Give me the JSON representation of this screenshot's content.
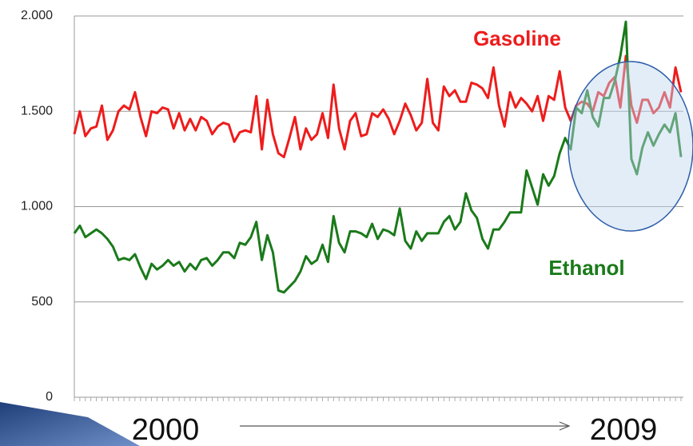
{
  "chart_data": {
    "type": "line",
    "categories": [
      null,
      null,
      null,
      null,
      null,
      null,
      null,
      null,
      null,
      null,
      null,
      null,
      null,
      null,
      null,
      null,
      null,
      null,
      null,
      null,
      null,
      null,
      null,
      null,
      null,
      null,
      null,
      null,
      null,
      null,
      null,
      null,
      null,
      null,
      null,
      null,
      null,
      null,
      null,
      null,
      null,
      null,
      null,
      null,
      null,
      null,
      null,
      null,
      null,
      null,
      null,
      null,
      null,
      null,
      null,
      null,
      null,
      null,
      null,
      null,
      null,
      null,
      null,
      null,
      null,
      null,
      null,
      null,
      null,
      null,
      null,
      null,
      null,
      null,
      null,
      null,
      null,
      null,
      null,
      null,
      null,
      null,
      null,
      null,
      null,
      null,
      null,
      null,
      null,
      null,
      null,
      null,
      null,
      null,
      null,
      null,
      null,
      null,
      null,
      null,
      null,
      null,
      null,
      null,
      null,
      null,
      null,
      null,
      null,
      null,
      null
    ],
    "series": [
      {
        "name": "Gasoline",
        "color": "#ee1c1c",
        "values": [
          1380,
          1500,
          1370,
          1410,
          1420,
          1530,
          1350,
          1400,
          1500,
          1530,
          1510,
          1600,
          1470,
          1370,
          1500,
          1490,
          1520,
          1510,
          1410,
          1490,
          1400,
          1460,
          1400,
          1470,
          1450,
          1380,
          1420,
          1440,
          1430,
          1340,
          1390,
          1400,
          1390,
          1580,
          1300,
          1560,
          1380,
          1280,
          1260,
          1360,
          1470,
          1300,
          1410,
          1350,
          1380,
          1490,
          1360,
          1640,
          1410,
          1300,
          1450,
          1490,
          1370,
          1380,
          1490,
          1470,
          1510,
          1460,
          1380,
          1450,
          1540,
          1480,
          1400,
          1440,
          1670,
          1440,
          1400,
          1630,
          1580,
          1610,
          1550,
          1550,
          1650,
          1640,
          1620,
          1570,
          1730,
          1530,
          1420,
          1600,
          1520,
          1570,
          1540,
          1500,
          1580,
          1450,
          1580,
          1560,
          1710,
          1520,
          1450,
          1530,
          1550,
          1540,
          1500,
          1600,
          1580,
          1650,
          1680,
          1520,
          1790,
          1530,
          1440,
          1560,
          1560,
          1490,
          1520,
          1600,
          1520,
          1730,
          1600
        ]
      },
      {
        "name": "Ethanol",
        "color": "#1a7a1a",
        "values": [
          860,
          900,
          840,
          860,
          880,
          860,
          830,
          790,
          720,
          730,
          720,
          750,
          680,
          620,
          700,
          670,
          690,
          720,
          690,
          710,
          660,
          700,
          670,
          720,
          730,
          690,
          720,
          760,
          760,
          730,
          810,
          800,
          840,
          920,
          720,
          850,
          760,
          560,
          550,
          580,
          610,
          660,
          740,
          700,
          720,
          800,
          710,
          950,
          810,
          760,
          870,
          870,
          860,
          840,
          910,
          830,
          880,
          870,
          850,
          990,
          820,
          780,
          870,
          820,
          860,
          860,
          860,
          920,
          950,
          880,
          920,
          1070,
          980,
          940,
          830,
          780,
          880,
          880,
          920,
          970,
          970,
          970,
          1190,
          1100,
          1010,
          1170,
          1110,
          1160,
          1280,
          1360,
          1300,
          1520,
          1490,
          1610,
          1470,
          1420,
          1570,
          1570,
          1660,
          1790,
          1970,
          1250,
          1170,
          1310,
          1390,
          1320,
          1380,
          1430,
          1390,
          1490,
          1260
        ]
      }
    ],
    "ylim": [
      0,
      2000
    ],
    "yticks": [
      0,
      500,
      {
        "value": 1000,
        "label": "1.000"
      },
      {
        "value": 1500,
        "label": "1.500"
      },
      {
        "value": 2000,
        "label": "2.000"
      }
    ],
    "grid": true,
    "annotations": [
      "2000",
      "2009"
    ]
  }
}
